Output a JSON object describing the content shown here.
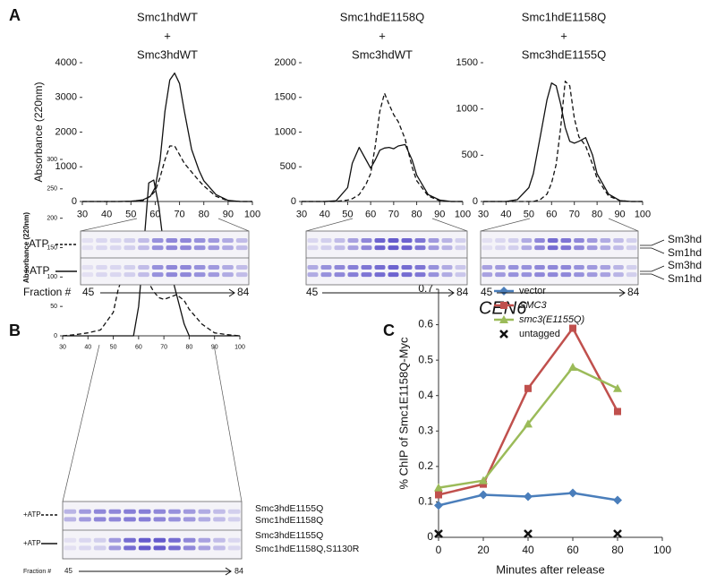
{
  "panels": {
    "a": "A",
    "b": "B",
    "c": "C"
  },
  "chart_data": [
    {
      "type": "line",
      "title_lines": [
        "Smc1hdWT",
        "+",
        "Smc3hdWT"
      ],
      "ylabel": "Absorbance (220nm)",
      "x": [
        30,
        35,
        40,
        45,
        50,
        52,
        55,
        58,
        60,
        62,
        64,
        66,
        68,
        70,
        72,
        75,
        78,
        80,
        85,
        90,
        95,
        100
      ],
      "xlim": [
        30,
        100
      ],
      "xticks": [
        30,
        40,
        50,
        60,
        70,
        80,
        90,
        100
      ],
      "ylim": [
        0,
        4000
      ],
      "yticks": [
        0,
        1000,
        2000,
        3000,
        4000
      ],
      "series": [
        {
          "color": "#111111",
          "dash": false,
          "values": [
            0,
            0,
            0,
            0,
            10,
            20,
            50,
            150,
            400,
            1200,
            2600,
            3500,
            3700,
            3400,
            2600,
            1500,
            900,
            600,
            200,
            30,
            0,
            0
          ]
        },
        {
          "color": "#111111",
          "dash": true,
          "values": [
            0,
            0,
            0,
            0,
            0,
            10,
            30,
            150,
            300,
            700,
            1200,
            1600,
            1600,
            1350,
            1100,
            850,
            600,
            450,
            150,
            20,
            0,
            0
          ]
        }
      ]
    },
    {
      "type": "line",
      "title_lines": [
        "Smc1hdE1158Q",
        "+",
        "Smc3hdWT"
      ],
      "x": [
        30,
        35,
        40,
        45,
        50,
        52,
        55,
        58,
        60,
        62,
        64,
        66,
        68,
        70,
        72,
        75,
        78,
        80,
        85,
        90,
        95,
        100
      ],
      "xlim": [
        30,
        100
      ],
      "xticks": [
        30,
        40,
        50,
        60,
        70,
        80,
        90,
        100
      ],
      "ylim": [
        0,
        2000
      ],
      "yticks": [
        0,
        500,
        1000,
        1500,
        2000
      ],
      "series": [
        {
          "color": "#111111",
          "dash": false,
          "values": [
            0,
            0,
            0,
            10,
            200,
            550,
            780,
            600,
            480,
            600,
            740,
            770,
            780,
            760,
            800,
            820,
            600,
            380,
            100,
            20,
            0,
            0
          ]
        },
        {
          "color": "#111111",
          "dash": true,
          "values": [
            0,
            0,
            0,
            0,
            20,
            40,
            100,
            250,
            400,
            800,
            1300,
            1560,
            1400,
            1250,
            1150,
            900,
            500,
            300,
            80,
            10,
            0,
            0
          ]
        }
      ]
    },
    {
      "type": "line",
      "title_lines": [
        "Smc1hdE1158Q",
        "+",
        "Smc3hdE1155Q"
      ],
      "x": [
        30,
        35,
        40,
        45,
        50,
        52,
        55,
        58,
        60,
        62,
        64,
        66,
        68,
        70,
        72,
        75,
        78,
        80,
        85,
        90,
        95,
        100
      ],
      "xlim": [
        30,
        100
      ],
      "xticks": [
        30,
        40,
        50,
        60,
        70,
        80,
        90,
        100
      ],
      "ylim": [
        0,
        1500
      ],
      "yticks": [
        0,
        500,
        1000,
        1500
      ],
      "series": [
        {
          "color": "#111111",
          "dash": false,
          "values": [
            0,
            0,
            0,
            20,
            150,
            300,
            700,
            1100,
            1280,
            1250,
            1050,
            800,
            650,
            630,
            650,
            690,
            500,
            300,
            80,
            10,
            0,
            0
          ]
        },
        {
          "color": "#111111",
          "dash": true,
          "values": [
            0,
            0,
            0,
            0,
            0,
            0,
            20,
            80,
            200,
            400,
            800,
            1300,
            1250,
            900,
            700,
            600,
            400,
            250,
            60,
            10,
            0,
            0
          ]
        }
      ]
    },
    {
      "type": "line",
      "ylabel": "Absorbance (220nm)",
      "x": [
        30,
        35,
        40,
        45,
        50,
        52,
        55,
        58,
        60,
        62,
        64,
        66,
        68,
        70,
        72,
        75,
        78,
        80,
        85,
        90,
        95,
        100
      ],
      "xlim": [
        30,
        100
      ],
      "xticks": [
        30,
        40,
        50,
        60,
        70,
        80,
        90,
        100
      ],
      "ylim": [
        0,
        300
      ],
      "yticks": [
        0,
        50,
        100,
        150,
        200,
        250,
        300
      ],
      "series": [
        {
          "color": "#111111",
          "dash": false,
          "values": [
            0,
            0,
            0,
            0,
            0,
            0,
            0,
            0,
            50,
            150,
            260,
            265,
            220,
            150,
            120,
            70,
            20,
            0,
            0,
            0,
            0,
            0
          ]
        },
        {
          "color": "#111111",
          "dash": true,
          "values": [
            0,
            2,
            5,
            10,
            40,
            80,
            115,
            130,
            125,
            110,
            90,
            75,
            65,
            62,
            65,
            70,
            60,
            45,
            20,
            5,
            2,
            0
          ]
        }
      ]
    },
    {
      "type": "line",
      "title": "CEN6",
      "ylabel": "% ChIP of Smc1E1158Q-Myc",
      "xlabel": "Minutes after release",
      "x": [
        0,
        20,
        40,
        60,
        80
      ],
      "xlim": [
        0,
        100
      ],
      "xticks": [
        0,
        20,
        40,
        60,
        80,
        100
      ],
      "ylim": [
        0,
        0.7
      ],
      "yticks": [
        0,
        0.1,
        0.2,
        0.3,
        0.4,
        0.5,
        0.6,
        0.7
      ],
      "legend": "top-left",
      "series": [
        {
          "name": "vector",
          "color": "#4a7ebb",
          "marker": "diamond",
          "line": true,
          "values": [
            0.09,
            0.12,
            0.115,
            0.125,
            0.105
          ]
        },
        {
          "name": "SMC3",
          "color": "#c0504d",
          "marker": "square",
          "line": true,
          "values": [
            0.12,
            0.15,
            0.42,
            0.59,
            0.355
          ]
        },
        {
          "name": "smc3(E1155Q)",
          "color": "#9bbb59",
          "marker": "triangle",
          "line": true,
          "values": [
            0.14,
            0.16,
            0.32,
            0.48,
            0.42
          ]
        },
        {
          "name": "untagged",
          "color": "#111111",
          "marker": "x",
          "line": false,
          "values": [
            0.01,
            null,
            0.01,
            null,
            0.01
          ]
        }
      ]
    }
  ],
  "gels_a": {
    "rows": [
      "-ATP",
      "+ATP"
    ],
    "fraction": "Fraction #",
    "start": "45",
    "end": "84",
    "bands": [
      "Sm3hd",
      "Sm1hd",
      "Sm3hd",
      "Sm1hd"
    ]
  },
  "gel_b": {
    "rows": [
      "+ATP",
      "+ATP"
    ],
    "fraction": "Fraction #",
    "start": "45",
    "end": "84",
    "bands": [
      "Smc3hdE1155Q",
      "Smc1hdE1158Q",
      "Smc3hdE1155Q",
      "Smc1hdE1158Q,S1130R"
    ]
  }
}
